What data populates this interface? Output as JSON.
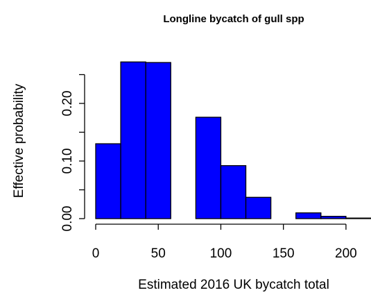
{
  "chart_data": {
    "type": "histogram",
    "title": "Longline bycatch of gull spp",
    "xlabel": "Estimated 2016 UK bycatch total",
    "ylabel": "Effective probability",
    "bins": [
      0,
      20,
      40,
      60,
      80,
      100,
      120,
      140,
      160,
      180,
      200,
      220
    ],
    "values": [
      0.13,
      0.272,
      0.271,
      0,
      0.176,
      0.092,
      0.037,
      0,
      0.01,
      0.004,
      0.001
    ],
    "color": "#0000ff",
    "xlim": [
      0,
      220
    ],
    "ylim": [
      0,
      0.28
    ],
    "xticks": [
      0,
      50,
      100,
      150,
      200
    ],
    "yticks": [
      {
        "value": 0,
        "label": "0.00"
      },
      {
        "value": 0.05,
        "label": null
      },
      {
        "value": 0.1,
        "label": "0.10"
      },
      {
        "value": 0.15,
        "label": null
      },
      {
        "value": 0.2,
        "label": "0.20"
      },
      {
        "value": 0.25,
        "label": null
      }
    ]
  }
}
